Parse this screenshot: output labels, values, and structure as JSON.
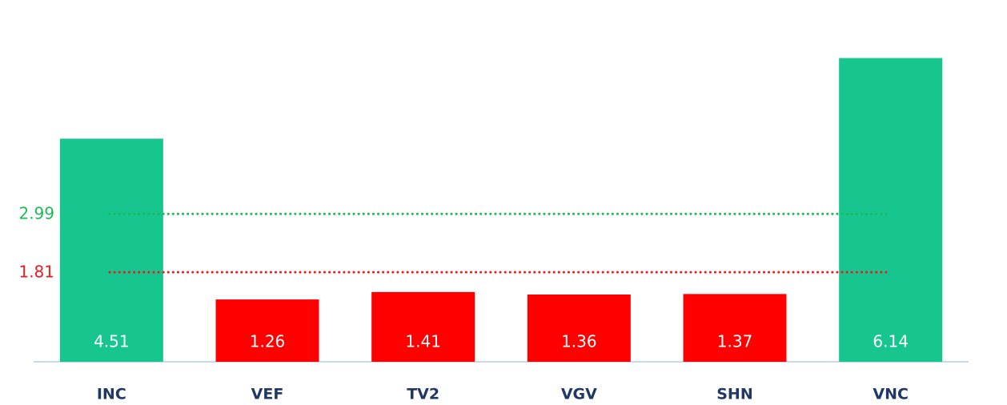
{
  "chart_data": {
    "type": "bar",
    "categories": [
      "INC",
      "VEF",
      "TV2",
      "VGV",
      "SHN",
      "VNC"
    ],
    "values": [
      4.51,
      1.26,
      1.41,
      1.36,
      1.37,
      6.14
    ],
    "colors": [
      "#17c58f",
      "#ff0000",
      "#ff0000",
      "#ff0000",
      "#ff0000",
      "#17c58f"
    ],
    "ylim": [
      0,
      7
    ],
    "reference_lines": [
      {
        "value": 2.99,
        "color": "#1db954"
      },
      {
        "value": 1.81,
        "color": "#ee1c1c"
      }
    ]
  }
}
